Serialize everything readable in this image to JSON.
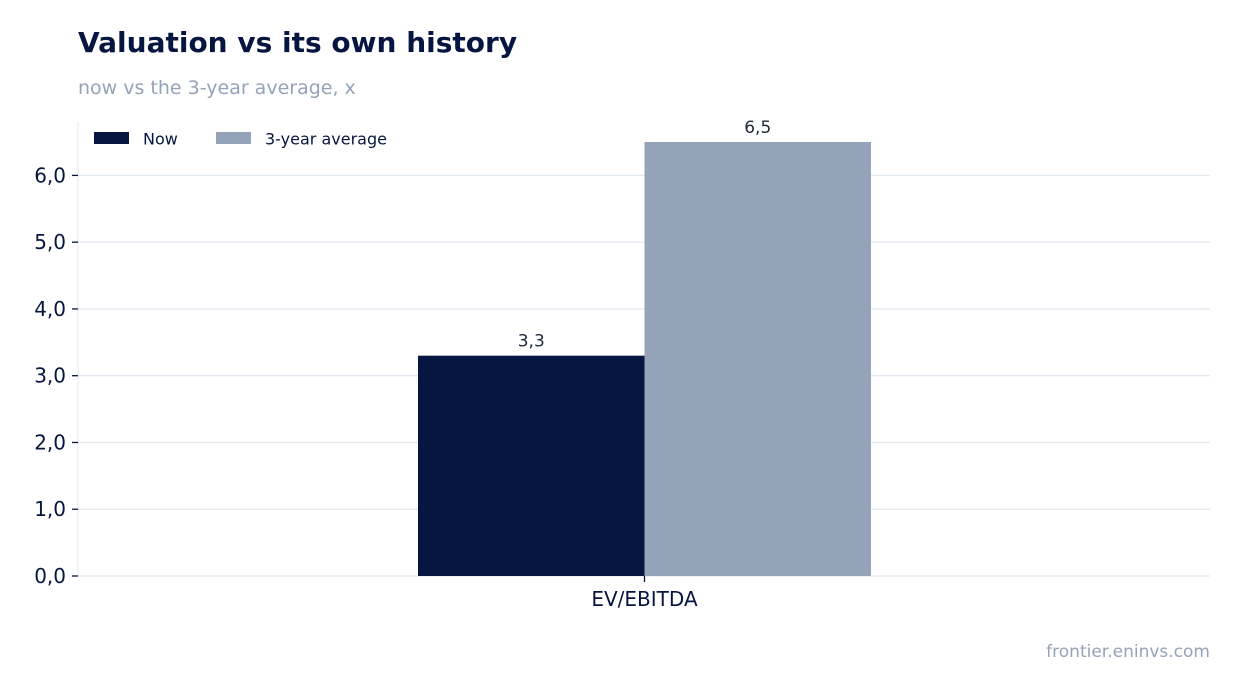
{
  "title": "Valuation vs its own history",
  "subtitle": "now vs the 3-year average, x",
  "source": "frontier.eninvs.com",
  "colors": {
    "now": "#071640",
    "avg": "#94a3b8",
    "grid": "#e2e8f0"
  },
  "chart_data": {
    "type": "bar",
    "categories": [
      "EV/EBITDA"
    ],
    "series": [
      {
        "name": "Now",
        "values": [
          3.3
        ],
        "labels": [
          "3,3"
        ],
        "color": "#071640"
      },
      {
        "name": "3-year average",
        "values": [
          6.5
        ],
        "labels": [
          "6,5"
        ],
        "color": "#94a3b8"
      }
    ],
    "ylim": [
      0,
      6.8
    ],
    "yticks": [
      0,
      1,
      2,
      3,
      4,
      5,
      6
    ],
    "ytick_labels": [
      "0,0",
      "1,0",
      "2,0",
      "3,0",
      "4,0",
      "5,0",
      "6,0"
    ],
    "grid": true,
    "legend": "top-left",
    "xlabel": "",
    "ylabel": ""
  }
}
